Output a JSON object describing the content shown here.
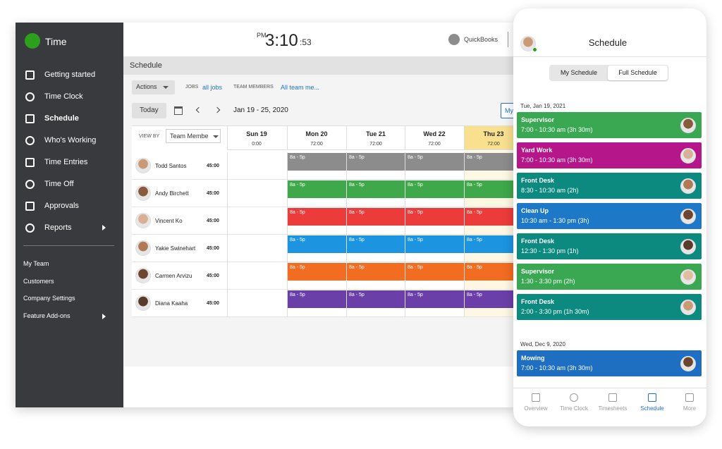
{
  "desktop": {
    "app_name": "Time",
    "clock": {
      "period": "PM",
      "time": "3:10",
      "seconds": ":53"
    },
    "brand": "QuickBooks",
    "sidebar": {
      "main": [
        {
          "label": "Getting started"
        },
        {
          "label": "Time Clock"
        },
        {
          "label": "Schedule",
          "active": true
        },
        {
          "label": "Who's Working"
        },
        {
          "label": "Time Entries"
        },
        {
          "label": "Time Off"
        },
        {
          "label": "Approvals"
        },
        {
          "label": "Reports",
          "submenu": true
        }
      ],
      "secondary": [
        {
          "label": "My Team"
        },
        {
          "label": "Customers"
        },
        {
          "label": "Company Settings"
        },
        {
          "label": "Feature Add-ons",
          "submenu": true
        }
      ]
    },
    "page_title": "Schedule",
    "toolbar": {
      "actions": "Actions",
      "jobs_label": "JOBS",
      "jobs_value": "all jobs",
      "team_label": "TEAM MEMBERS",
      "team_value": "All team me..."
    },
    "nav": {
      "today": "Today",
      "range": "Jan 19 - 25, 2020",
      "view_button": "My"
    },
    "grid": {
      "view_by_label": "VIEW BY",
      "view_by_value": "Team Membe",
      "days": [
        {
          "name": "Sun 19",
          "hours": "0:00"
        },
        {
          "name": "Mon 20",
          "hours": "72:00"
        },
        {
          "name": "Tue 21",
          "hours": "72:00"
        },
        {
          "name": "Wed 22",
          "hours": "72:00"
        },
        {
          "name": "Thu 23",
          "hours": "72:00",
          "today": true
        }
      ],
      "members": [
        {
          "name": "Todd Santos",
          "hours": "45:00",
          "color": "#8c8c8c",
          "shifts": [
            null,
            "8a - 5p",
            "8a - 5p",
            "8a - 5p",
            "8a - 5p"
          ]
        },
        {
          "name": "Andy Birchett",
          "hours": "45:00",
          "color": "#3ea84a",
          "shifts": [
            null,
            "8a - 5p",
            "8a - 5p",
            "8a - 5p",
            "8a - 5p"
          ]
        },
        {
          "name": "Vincent Ko",
          "hours": "45:00",
          "color": "#ec3b3b",
          "shifts": [
            null,
            "8a - 5p",
            "8a - 5p",
            "8a - 5p",
            "8a - 5p"
          ]
        },
        {
          "name": "Yakie Swinehart",
          "hours": "45:00",
          "color": "#1c94e0",
          "shifts": [
            null,
            "8a - 5p",
            "8a - 5p",
            "8a - 5p",
            "8a - 5p"
          ]
        },
        {
          "name": "Carmen Arvizu",
          "hours": "45:00",
          "color": "#f26c21",
          "shifts": [
            null,
            "8a - 5p",
            "8a - 5p",
            "8a - 5p",
            "8a - 5p"
          ]
        },
        {
          "name": "Diana Kaaha",
          "hours": "45:00",
          "color": "#6b3fa8",
          "shifts": [
            null,
            "8a - 5p",
            "8a - 5p",
            "8a - 5p",
            "8a - 5p"
          ]
        }
      ]
    }
  },
  "mobile": {
    "title": "Schedule",
    "tabs": [
      {
        "label": "My Schedule"
      },
      {
        "label": "Full Schedule",
        "active": true
      }
    ],
    "days": [
      {
        "date": "Tue, Jan 19, 2021",
        "shifts": [
          {
            "title": "Supervisor",
            "time": "7:00 - 10:30 am (3h 30m)",
            "color": "#3aa852"
          },
          {
            "title": "Yard Work",
            "time": "7:00 - 10:30 am (3h 30m)",
            "color": "#b5178a"
          },
          {
            "title": "Front Desk",
            "time": "8:30 - 10:30 am (2h)",
            "color": "#0d8a80"
          },
          {
            "title": "Clean Up",
            "time": "10:30 am - 1:30 pm (3h)",
            "color": "#1e78c8"
          },
          {
            "title": "Front Desk",
            "time": "12:30 - 1:30 pm (1h)",
            "color": "#0d8a80"
          },
          {
            "title": "Supervisor",
            "time": "1:30 - 3:30 pm (2h)",
            "color": "#3aa852"
          },
          {
            "title": "Front Desk",
            "time": "2:00 - 3:30 pm (1h 30m)",
            "color": "#0d8a80"
          }
        ]
      },
      {
        "date": "Wed, Dec 9, 2020",
        "shifts": [
          {
            "title": "Mowing",
            "time": "7:00 - 10:30 am (3h 30m)",
            "color": "#1e6fc1"
          }
        ]
      }
    ],
    "bottom_nav": [
      {
        "label": "Overview"
      },
      {
        "label": "Time Clock"
      },
      {
        "label": "Timesheets"
      },
      {
        "label": "Schedule",
        "active": true
      },
      {
        "label": "More"
      }
    ]
  }
}
